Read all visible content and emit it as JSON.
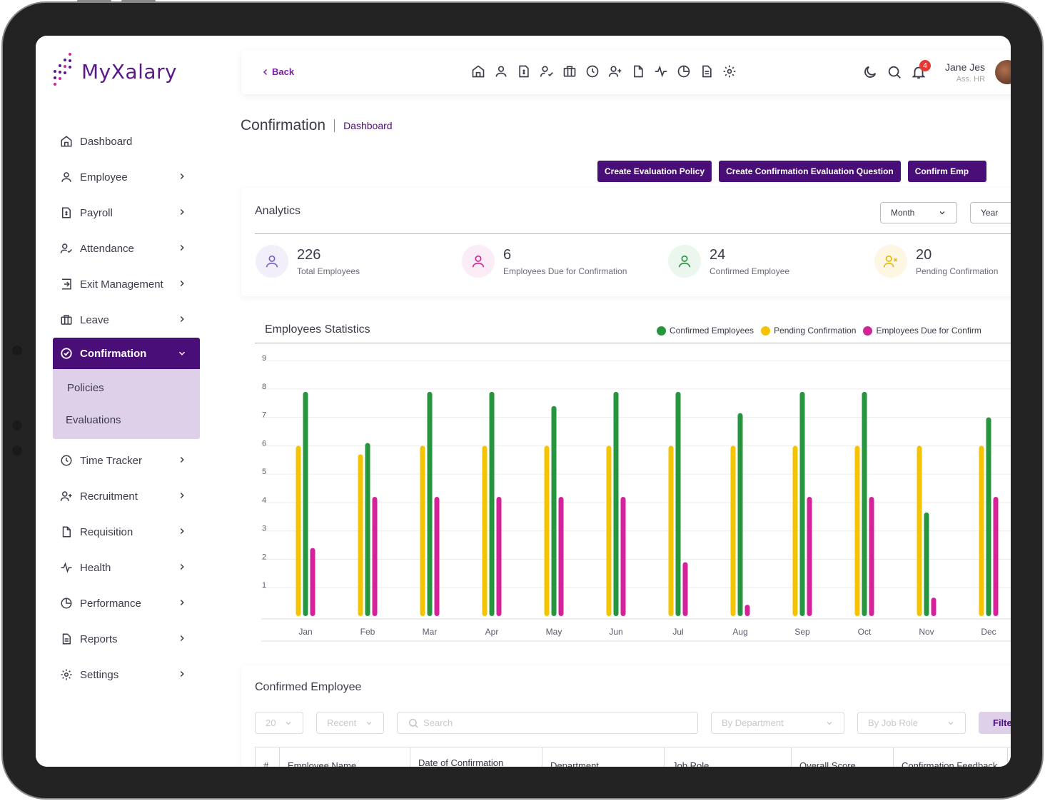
{
  "brand": {
    "name": "MyXalary"
  },
  "sidebar": {
    "items": [
      {
        "label": "Dashboard",
        "icon": "home-icon"
      },
      {
        "label": "Employee",
        "icon": "user-icon"
      },
      {
        "label": "Payroll",
        "icon": "payroll-icon"
      },
      {
        "label": "Attendance",
        "icon": "attendance-icon"
      },
      {
        "label": "Exit Management",
        "icon": "exit-icon"
      },
      {
        "label": "Leave",
        "icon": "briefcase-icon"
      },
      {
        "label": "Confirmation",
        "icon": "check-circle-icon"
      },
      {
        "label": "Time Tracker",
        "icon": "clock-icon"
      },
      {
        "label": "Recruitment",
        "icon": "user-plus-icon"
      },
      {
        "label": "Requisition",
        "icon": "file-icon"
      },
      {
        "label": "Health",
        "icon": "pulse-icon"
      },
      {
        "label": "Performance",
        "icon": "pie-icon"
      },
      {
        "label": "Reports",
        "icon": "report-icon"
      },
      {
        "label": "Settings",
        "icon": "gear-icon"
      }
    ],
    "submenu": [
      "Policies",
      "Evaluations"
    ]
  },
  "topbar": {
    "back_label": "Back",
    "notification_count": "4",
    "user_name": "Jane Jes",
    "user_role": "Ass. HR"
  },
  "page": {
    "title": "Confirmation",
    "breadcrumb": "Dashboard"
  },
  "actions": {
    "create_policy": "Create Evaluation Policy",
    "create_question": "Create Confirmation Evaluation Question",
    "confirm": "Confirm Emp"
  },
  "analytics": {
    "title": "Analytics",
    "month_label": "Month",
    "year_label": "Year",
    "stats": [
      {
        "value": "226",
        "label": "Total Employees"
      },
      {
        "value": "6",
        "label": "Employees Due for Confirmation"
      },
      {
        "value": "24",
        "label": "Confirmed Employee"
      },
      {
        "value": "20",
        "label": "Pending Confirmation"
      }
    ]
  },
  "stats_section": {
    "title": "Employees Statistics",
    "legend": [
      "Confirmed Employees",
      "Pending Confirmation",
      "Employees Due for Confirm"
    ]
  },
  "chart_data": {
    "type": "bar",
    "categories": [
      "Jan",
      "Feb",
      "Mar",
      "Apr",
      "May",
      "Jun",
      "Jul",
      "Aug",
      "Sep",
      "Oct",
      "Nov",
      "Dec"
    ],
    "series": [
      {
        "name": "Pending Confirmation",
        "color": "#f5c400",
        "values": [
          6.1,
          5.8,
          6.1,
          6.1,
          6.1,
          6.1,
          6.1,
          6.1,
          6.1,
          6.1,
          6.1,
          6.1
        ]
      },
      {
        "name": "Confirmed Employees",
        "color": "#26963e",
        "values": [
          8.0,
          6.2,
          8.0,
          8.0,
          7.5,
          8.0,
          8.0,
          7.25,
          8.0,
          8.0,
          3.75,
          7.1
        ]
      },
      {
        "name": "Employees Due for Confirmation",
        "color": "#d4239a",
        "values": [
          2.5,
          4.3,
          4.3,
          4.3,
          4.3,
          4.3,
          2.0,
          0.5,
          4.3,
          4.3,
          0.75,
          4.3
        ]
      }
    ],
    "yticks": [
      1,
      2,
      3,
      4,
      5,
      6,
      7,
      8,
      9
    ],
    "ylim": [
      0,
      9
    ],
    "xlabel": "",
    "ylabel": ""
  },
  "table": {
    "title": "Confirmed Employee",
    "page_size": "20",
    "sort": "Recent",
    "search_placeholder": "Search",
    "department_placeholder": "By Department",
    "jobrole_placeholder": "By Job Role",
    "filter_label": "Filte",
    "columns": [
      "#",
      "Employee Name",
      "Date of Confirmation",
      "Department",
      "Job Role",
      "Overall Score",
      "Confirmation Feedback"
    ]
  }
}
